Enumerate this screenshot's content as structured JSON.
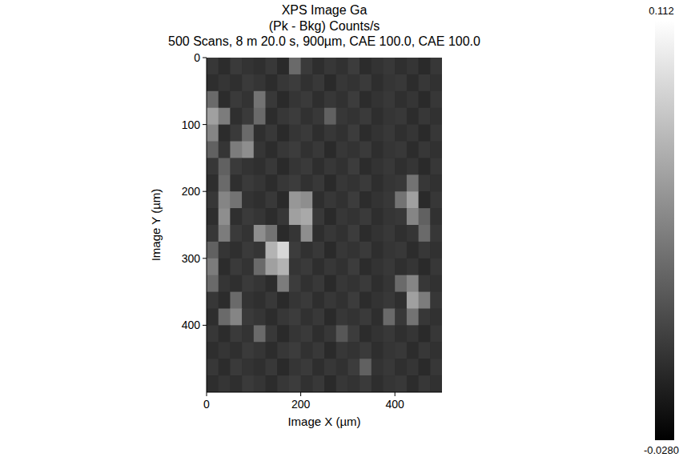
{
  "chart_data": {
    "type": "heatmap",
    "title": "XPS Image Ga",
    "subtitle": [
      "(Pk - Bkg)  Counts/s",
      "500 Scans, 8 m 20.0 s,  900µm,  CAE 100.0,  CAE 100.0"
    ],
    "x_label": "Image X (µm)",
    "y_label": "Image Y (µm)",
    "xlim": [
      0,
      500
    ],
    "ylim": [
      500,
      0
    ],
    "xticks": [
      0,
      200,
      400
    ],
    "yticks": [
      0,
      100,
      200,
      300,
      400
    ],
    "x_bins": [
      0,
      25,
      50,
      75,
      100,
      125,
      150,
      175,
      200,
      225,
      250,
      275,
      300,
      325,
      350,
      375,
      400,
      425,
      450,
      475,
      500
    ],
    "y_bins": [
      0,
      25,
      50,
      75,
      100,
      125,
      150,
      175,
      200,
      225,
      250,
      275,
      300,
      325,
      350,
      375,
      400,
      425,
      450,
      475,
      500
    ],
    "cells": [
      [
        0.002,
        -0.004,
        0.004,
        0,
        -0.002,
        0.003,
        -0.005,
        0.03,
        0.004,
        -0.003,
        0.002,
        -0.001,
        0.005,
        -0.004,
        0,
        0.003,
        -0.002,
        0.001,
        -0.005,
        0.002
      ],
      [
        -0.003,
        0.001,
        -0.002,
        0.004,
        0.001,
        -0.004,
        0.002,
        0.005,
        -0.001,
        0.003,
        -0.005,
        0.002,
        0,
        0.004,
        -0.003,
        0.001,
        0.003,
        -0.004,
        0.002,
        -0.001
      ],
      [
        0.03,
        -0.004,
        0.004,
        0,
        0.035,
        0.003,
        -0.005,
        0.001,
        0.004,
        -0.003,
        0.002,
        -0.001,
        0.005,
        -0.004,
        0,
        0.003,
        -0.002,
        0.001,
        -0.005,
        0.002
      ],
      [
        0.06,
        0.04,
        -0.002,
        0.004,
        0.03,
        -0.004,
        0.002,
        0.005,
        -0.001,
        0.003,
        0.025,
        0.002,
        0,
        0.004,
        -0.003,
        0.001,
        0.003,
        -0.004,
        0.002,
        -0.001
      ],
      [
        0.045,
        -0.004,
        0.004,
        0.03,
        -0.002,
        0.003,
        -0.005,
        0.001,
        0.004,
        -0.003,
        0.002,
        -0.001,
        0.005,
        -0.004,
        0,
        0.003,
        -0.002,
        0.001,
        -0.005,
        0.002
      ],
      [
        0.025,
        0.001,
        0.04,
        0.05,
        0.001,
        -0.004,
        0.002,
        0.005,
        -0.001,
        0.003,
        -0.005,
        0.002,
        0,
        0.004,
        -0.003,
        0.001,
        0.003,
        -0.004,
        0.002,
        -0.001
      ],
      [
        0.002,
        0.025,
        0.004,
        0,
        -0.002,
        0.003,
        -0.005,
        0.001,
        0.004,
        -0.003,
        0.002,
        -0.001,
        0.005,
        -0.004,
        0,
        0.003,
        -0.002,
        0.001,
        -0.005,
        0.002
      ],
      [
        -0.003,
        0.03,
        -0.002,
        0.004,
        0.001,
        -0.004,
        0.002,
        0.005,
        -0.001,
        0.003,
        -0.005,
        0.002,
        0,
        0.004,
        -0.003,
        0.001,
        0.003,
        0.035,
        0.002,
        -0.001
      ],
      [
        0.002,
        0.045,
        0.035,
        0,
        -0.002,
        0.003,
        -0.005,
        0.055,
        0.05,
        -0.003,
        0.002,
        -0.001,
        0.005,
        -0.004,
        0,
        0.003,
        0.035,
        0.06,
        -0.005,
        0.002
      ],
      [
        -0.003,
        0.05,
        -0.002,
        0.004,
        0.001,
        -0.004,
        0.002,
        0.06,
        0.065,
        0.003,
        -0.005,
        0.002,
        0,
        0.004,
        -0.003,
        0.001,
        0.003,
        0.045,
        0.025,
        -0.001
      ],
      [
        0.002,
        0.04,
        0.004,
        0,
        0.05,
        0.035,
        -0.005,
        0.001,
        0.05,
        -0.003,
        0.002,
        -0.001,
        0.005,
        -0.004,
        0,
        0.003,
        -0.002,
        0.001,
        0.03,
        0.002
      ],
      [
        0.025,
        0.001,
        -0.002,
        0.004,
        0.001,
        0.07,
        0.09,
        0.005,
        -0.001,
        0.003,
        -0.005,
        0.002,
        0,
        0.004,
        -0.003,
        0.001,
        0.003,
        -0.004,
        0.002,
        -0.001
      ],
      [
        0.04,
        -0.004,
        0.004,
        0,
        0.03,
        0.06,
        0.07,
        0.001,
        0.004,
        -0.003,
        0.002,
        -0.001,
        0.005,
        -0.004,
        0,
        0.003,
        -0.002,
        0.001,
        -0.005,
        0.002
      ],
      [
        0.03,
        0.001,
        -0.002,
        0.004,
        0.001,
        -0.004,
        0.04,
        0.005,
        -0.001,
        0.003,
        -0.005,
        0.002,
        0,
        0.004,
        -0.003,
        0.001,
        0.03,
        0.045,
        0.002,
        -0.001
      ],
      [
        0.002,
        -0.004,
        0.03,
        0,
        -0.002,
        0.003,
        -0.005,
        0.001,
        0.004,
        -0.003,
        0.002,
        -0.001,
        0.005,
        -0.004,
        0,
        0.003,
        -0.002,
        0.06,
        0.04,
        0.002
      ],
      [
        -0.003,
        0.03,
        0.045,
        0.004,
        0.001,
        -0.004,
        0.002,
        0.005,
        -0.001,
        0.003,
        -0.005,
        0.002,
        0,
        0.004,
        -0.003,
        0.03,
        0.003,
        0.035,
        0.002,
        -0.001
      ],
      [
        0.002,
        -0.004,
        0.004,
        0,
        0.03,
        0.003,
        -0.005,
        0.001,
        0.004,
        -0.003,
        0.002,
        0.02,
        0.005,
        -0.004,
        0,
        0.003,
        -0.002,
        0.001,
        -0.005,
        0.002
      ],
      [
        -0.003,
        0.001,
        -0.002,
        0.004,
        0.001,
        -0.004,
        0.002,
        0.005,
        -0.001,
        0.003,
        -0.005,
        0.002,
        0,
        0.004,
        -0.003,
        0.001,
        0.003,
        -0.004,
        0.002,
        -0.001
      ],
      [
        0.002,
        -0.004,
        0.004,
        0,
        -0.002,
        0.003,
        -0.005,
        0.001,
        0.004,
        -0.003,
        0.002,
        -0.001,
        0.005,
        0.025,
        0,
        0.003,
        -0.002,
        0.001,
        -0.005,
        0.002
      ],
      [
        -0.003,
        0.001,
        -0.002,
        0.004,
        0.001,
        -0.004,
        0.002,
        0.005,
        -0.001,
        0.003,
        -0.005,
        0.002,
        0,
        0.004,
        -0.003,
        0.001,
        0.003,
        -0.004,
        0.002,
        -0.001
      ]
    ],
    "color_range": [
      -0.028,
      0.112
    ],
    "color_ticks": [
      0.112,
      {
        "value": -0.028,
        "label": "-0.0280"
      }
    ]
  }
}
